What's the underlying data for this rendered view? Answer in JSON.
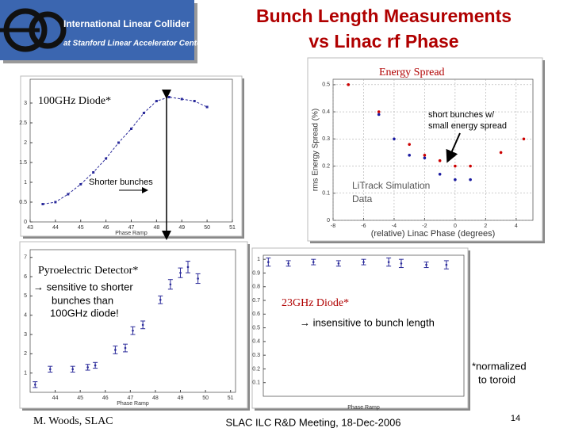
{
  "header": {
    "logo_line1": "International Linear Collider",
    "logo_line2": "at Stanford Linear Accelerator Center",
    "title_line1": "Bunch Length Measurements",
    "title_line2": "vs Linac rf Phase"
  },
  "chart_data": [
    {
      "type": "line",
      "title": "100GHz Diode*",
      "xlabel": "Phase Ramp",
      "color": "#2a2a9a",
      "x": [
        43.5,
        44,
        44.5,
        45,
        45.5,
        46,
        46.5,
        47,
        47.5,
        48,
        48.5,
        49,
        49.5,
        50
      ],
      "values": [
        0.45,
        0.5,
        0.7,
        0.95,
        1.25,
        1.6,
        2.0,
        2.35,
        2.75,
        3.05,
        3.15,
        3.1,
        3.05,
        2.9
      ],
      "xlim": [
        43,
        51
      ],
      "ylim": [
        0,
        3.6
      ],
      "xticks": [
        43,
        44,
        45,
        46,
        47,
        48,
        49,
        50,
        51
      ],
      "yticks": [
        0,
        0.5,
        1,
        1.5,
        2,
        2.5,
        3
      ],
      "annotations": [
        "Shorter bunches"
      ]
    },
    {
      "type": "scatter",
      "title": "Energy Spread",
      "xlabel": "(relative) Linac Phase (degrees)",
      "ylabel": "rms Energy Spread (%)",
      "series": [
        {
          "name": "Data",
          "color": "#cc0000",
          "x": [
            -7,
            -5,
            -3,
            -2,
            -1,
            0,
            1,
            3,
            4.5
          ],
          "values": [
            0.5,
            0.4,
            0.28,
            0.24,
            0.22,
            0.2,
            0.2,
            0.25,
            0.3
          ]
        },
        {
          "name": "LiTrack Simulation",
          "color": "#1a1aa0",
          "x": [
            -5,
            -4,
            -3,
            -2,
            -1,
            0,
            1
          ],
          "values": [
            0.39,
            0.3,
            0.24,
            0.23,
            0.17,
            0.15,
            0.15
          ]
        }
      ],
      "xlim": [
        -8,
        5.1
      ],
      "ylim": [
        0,
        0.52
      ],
      "xticks": [
        -8,
        -6,
        -4,
        -2,
        0,
        2,
        4
      ],
      "yticks": [
        0,
        0.1,
        0.2,
        0.3,
        0.4,
        0.5
      ],
      "annotations": [
        "short bunches w/",
        "small energy spread",
        "LiTrack Simulation",
        "Data"
      ]
    },
    {
      "type": "errorbar",
      "title": "Pyroelectric Detector*",
      "xlabel": "Phase Ramp",
      "color": "#2a2a9a",
      "x": [
        43.2,
        43.8,
        44.7,
        45.3,
        45.6,
        46.4,
        46.8,
        47.1,
        47.5,
        48.2,
        48.6,
        49,
        49.3,
        49.7
      ],
      "values": [
        0.4,
        1.2,
        1.2,
        1.3,
        1.4,
        2.2,
        2.3,
        3.2,
        3.5,
        4.8,
        5.6,
        6.2,
        6.5,
        5.9
      ],
      "errors": [
        0.15,
        0.15,
        0.15,
        0.15,
        0.15,
        0.2,
        0.2,
        0.2,
        0.2,
        0.2,
        0.25,
        0.25,
        0.3,
        0.25
      ],
      "xlim": [
        43,
        51.2
      ],
      "ylim": [
        0,
        7.4
      ],
      "xticks": [
        44,
        45,
        46,
        47,
        48,
        49,
        50,
        51
      ],
      "yticks": [
        1,
        2,
        3,
        4,
        5,
        6,
        7
      ],
      "annotations": [
        "→ sensitive to shorter",
        "bunches than",
        "100GHz diode!"
      ]
    },
    {
      "type": "errorbar",
      "title": "23GHz Diode*",
      "xlabel": "Phase Ramp",
      "color": "#2a2a9a",
      "x": [
        43.2,
        44,
        45,
        46,
        47,
        48,
        48.5,
        49.5,
        50.3
      ],
      "values": [
        0.98,
        0.97,
        0.98,
        0.97,
        0.98,
        0.98,
        0.97,
        0.96,
        0.96
      ],
      "errors": [
        0.03,
        0.02,
        0.02,
        0.02,
        0.02,
        0.03,
        0.03,
        0.02,
        0.03
      ],
      "xlim": [
        43,
        51
      ],
      "ylim": [
        0,
        1.03
      ],
      "yticks": [
        0.1,
        0.2,
        0.3,
        0.4,
        0.5,
        0.6,
        0.7,
        0.8,
        0.9,
        1
      ],
      "annotations": [
        "→ insensitive to bunch length",
        "*normalized",
        "to toroid"
      ]
    }
  ],
  "footer": {
    "author": "M. Woods, SLAC",
    "meeting": "SLAC ILC R&D Meeting, 18-Dec-2006",
    "page": "14"
  }
}
